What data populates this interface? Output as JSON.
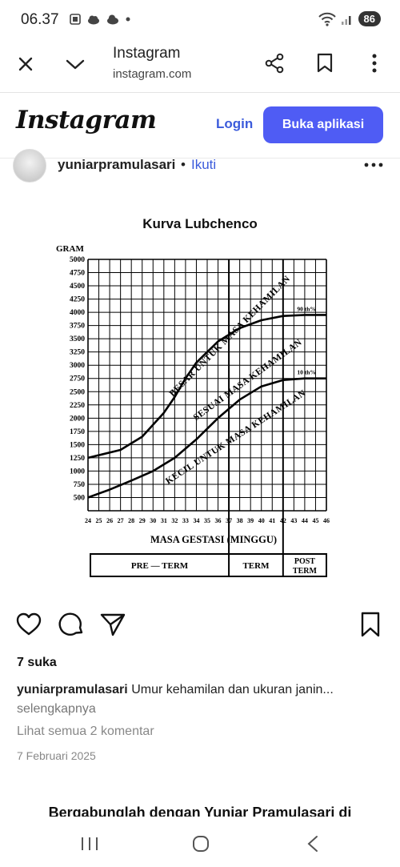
{
  "status": {
    "time": "06.37",
    "battery": "86"
  },
  "browser": {
    "title": "Instagram",
    "url": "instagram.com"
  },
  "ig": {
    "logo": "Instagram",
    "login": "Login",
    "open_app": "Buka aplikasi"
  },
  "post": {
    "username": "yuniarpramulasari",
    "separator": "•",
    "follow": "Ikuti",
    "likes": "7 suka",
    "caption_user": "yuniarpramulasari",
    "caption_text": "Umur kehamilan dan ukuran janin...",
    "more": "selengkapnya",
    "comments": "Lihat semua 2 komentar",
    "date": "7 Februari 2025"
  },
  "chart_title": "Kurva Lubchenco",
  "join_banner": "Bergabunglah dengan Yuniar Pramulasari di",
  "chart_data": {
    "type": "line",
    "title": "Kurva Lubchenco",
    "ylabel": "GRAM",
    "xlabel": "MASA GESTASI (MINGGU)",
    "x": [
      24,
      25,
      26,
      27,
      28,
      29,
      30,
      31,
      32,
      33,
      34,
      35,
      36,
      37,
      38,
      39,
      40,
      41,
      42,
      43,
      44,
      45,
      46
    ],
    "y_ticks": [
      500,
      750,
      1000,
      1250,
      1500,
      1750,
      2000,
      2250,
      2500,
      2750,
      3000,
      3250,
      3500,
      3750,
      4000,
      4250,
      4500,
      4750,
      5000
    ],
    "ylim": [
      250,
      5000
    ],
    "xlim": [
      24,
      46
    ],
    "term_divider": 37,
    "post_term_divider": 42,
    "periods": [
      "PRE — TERM",
      "TERM",
      "POST TERM"
    ],
    "series": [
      {
        "name": "90 th%",
        "points": [
          [
            24,
            1250
          ],
          [
            27,
            1400
          ],
          [
            29,
            1650
          ],
          [
            31,
            2100
          ],
          [
            32,
            2400
          ],
          [
            33,
            2750
          ],
          [
            34,
            3050
          ],
          [
            36,
            3450
          ],
          [
            38,
            3700
          ],
          [
            40,
            3850
          ],
          [
            42,
            3930
          ],
          [
            44,
            3950
          ],
          [
            46,
            3950
          ]
        ]
      },
      {
        "name": "10 th%",
        "points": [
          [
            24,
            500
          ],
          [
            26,
            650
          ],
          [
            28,
            820
          ],
          [
            30,
            1000
          ],
          [
            32,
            1250
          ],
          [
            34,
            1600
          ],
          [
            36,
            2000
          ],
          [
            38,
            2350
          ],
          [
            40,
            2600
          ],
          [
            42,
            2720
          ],
          [
            44,
            2750
          ],
          [
            46,
            2750
          ]
        ]
      }
    ],
    "annotations": [
      "BESAR UNTUK MASA KEHAMILAN",
      "SESUAI MASA KEHAMILAN",
      "KECIL UNTUK MASA KEHAMILAN"
    ]
  }
}
